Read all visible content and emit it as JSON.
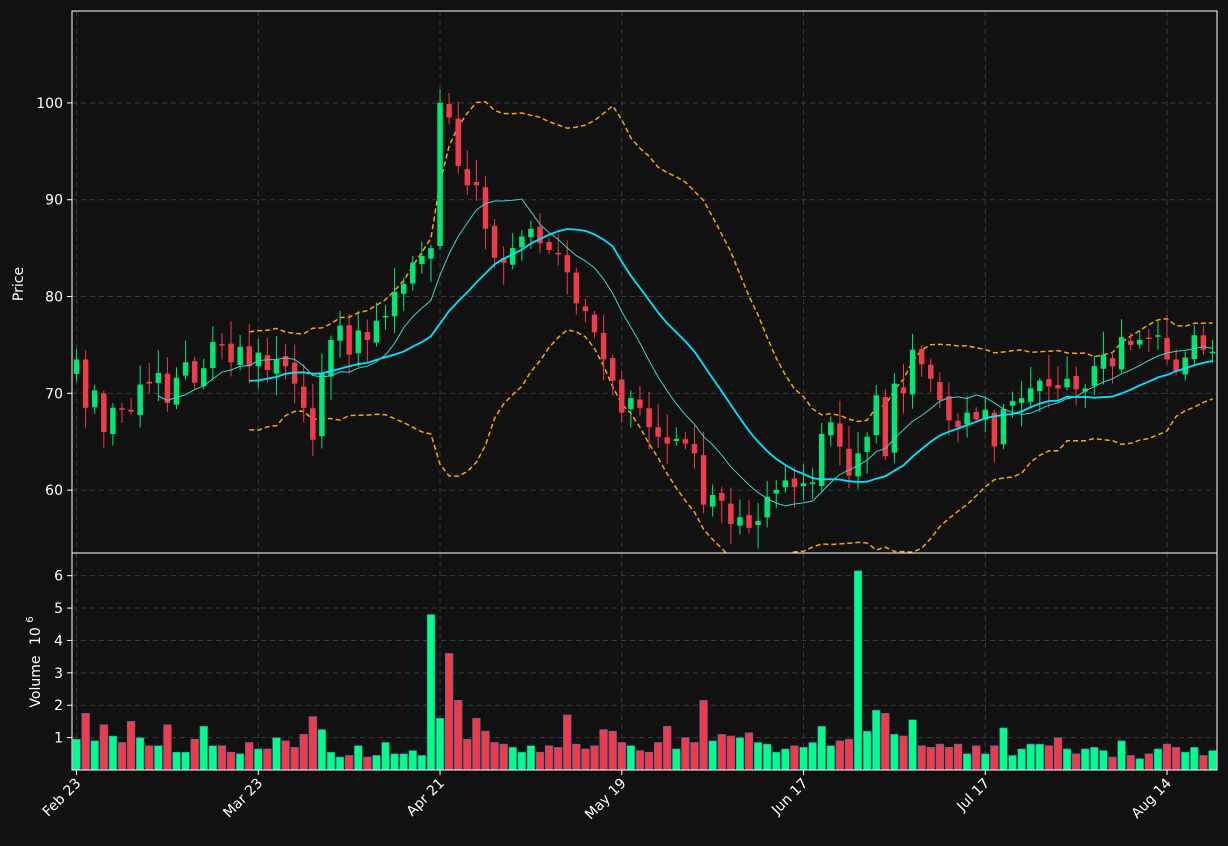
{
  "chart_data": {
    "type": "candlestick",
    "price_axis": {
      "ylabel": "Price",
      "ylim": [
        53.5,
        109.5
      ],
      "ticks": [
        60,
        70,
        80,
        90,
        100
      ]
    },
    "volume_axis": {
      "ylabel": "Volume",
      "exponent_label": "10",
      "exponent_power": "6",
      "ylim": [
        0,
        6.7
      ],
      "ticks": [
        1,
        2,
        3,
        4,
        5,
        6
      ]
    },
    "x_axis": {
      "range": [
        -0.5,
        125.5
      ],
      "tick_labels": [
        {
          "index": 0,
          "label": "Feb 23"
        },
        {
          "index": 20,
          "label": "Mar 23"
        },
        {
          "index": 40,
          "label": "Apr 21"
        },
        {
          "index": 60,
          "label": "May 19"
        },
        {
          "index": 80,
          "label": "Jun 17"
        },
        {
          "index": 100,
          "label": "Jul 17"
        },
        {
          "index": 120,
          "label": "Aug 14"
        }
      ]
    },
    "grid": true,
    "colors": {
      "background": "#111111",
      "up": "#00e676",
      "down": "#ef3b4a",
      "volume_up": "#00ff88",
      "volume_down": "#ef3b4a",
      "ma_short": "#39d5d0",
      "ma_long": "#00e5ff",
      "bands": "#ffa500",
      "grid": "#3a3a3a",
      "frame": "#ffffff"
    },
    "closes": [
      73.5,
      68.5,
      70.3,
      66.0,
      68.5,
      68.3,
      68.1,
      70.9,
      71.0,
      72.1,
      69.0,
      71.6,
      73.2,
      71.1,
      72.6,
      75.3,
      75.0,
      73.2,
      74.8,
      72.8,
      74.2,
      72.4,
      73.5,
      72.8,
      71.0,
      68.5,
      65.2,
      72.0,
      75.5,
      77.0,
      74.0,
      76.5,
      75.5,
      77.5,
      78.0,
      80.5,
      81.3,
      83.5,
      84.2,
      85.0,
      100.0,
      98.5,
      93.5,
      91.5,
      91.5,
      87.0,
      84.0,
      83.5,
      85.0,
      86.2,
      87.0,
      85.5,
      84.8,
      84.5,
      82.5,
      79.3,
      78.5,
      76.3,
      73.5,
      71.3,
      68.0,
      69.5,
      68.5,
      66.5,
      65.5,
      64.8,
      65.3,
      64.8,
      63.8,
      58.5,
      59.5,
      58.9,
      56.5,
      57.2,
      56.1,
      56.8,
      59.3,
      60.0,
      61.0,
      60.3,
      60.7,
      60.8,
      65.8,
      67.0,
      64.5,
      61.5,
      63.8,
      65.5,
      69.8,
      63.5,
      71.0,
      70.0,
      74.5,
      73.0,
      71.5,
      69.3,
      67.2,
      66.5,
      68.0,
      67.3,
      68.3,
      64.5,
      68.4,
      69.2,
      69.5,
      70.5,
      71.3,
      70.7,
      70.5,
      71.5,
      70.4,
      70.5,
      72.8,
      74.0,
      72.8,
      75.8,
      75.0,
      75.5,
      75.7,
      76.0,
      73.5,
      72.3,
      73.7,
      76.0,
      74.5,
      74.3
    ],
    "volumes": [
      0.95,
      1.75,
      0.9,
      1.4,
      1.05,
      0.85,
      1.5,
      1.0,
      0.75,
      0.75,
      1.4,
      0.55,
      0.55,
      0.95,
      1.35,
      0.75,
      0.75,
      0.55,
      0.5,
      0.85,
      0.65,
      0.65,
      1.0,
      0.9,
      0.7,
      1.1,
      1.65,
      1.25,
      0.55,
      0.4,
      0.45,
      0.75,
      0.4,
      0.45,
      0.85,
      0.5,
      0.5,
      0.6,
      0.45,
      4.8,
      1.6,
      3.6,
      2.15,
      0.95,
      1.6,
      1.2,
      0.85,
      0.8,
      0.7,
      0.55,
      0.75,
      0.55,
      0.75,
      0.7,
      1.7,
      0.8,
      0.65,
      0.75,
      1.25,
      1.2,
      0.85,
      0.75,
      0.6,
      0.55,
      0.85,
      1.35,
      0.65,
      1.0,
      0.85,
      2.15,
      0.9,
      1.1,
      1.05,
      1.0,
      1.15,
      0.85,
      0.8,
      0.55,
      0.65,
      0.75,
      0.7,
      0.85,
      1.35,
      0.75,
      0.9,
      0.95,
      6.15,
      1.2,
      1.85,
      1.75,
      1.1,
      1.05,
      1.55,
      0.75,
      0.7,
      0.8,
      0.7,
      0.8,
      0.5,
      0.75,
      0.5,
      0.75,
      1.3,
      0.45,
      0.65,
      0.8,
      0.8,
      0.75,
      1.0,
      0.65,
      0.5,
      0.65,
      0.7,
      0.6,
      0.4,
      0.9,
      0.45,
      0.35,
      0.5,
      0.65,
      0.8,
      0.7,
      0.55,
      0.7,
      0.45,
      0.6
    ],
    "overlays": [
      {
        "kind": "moving_average",
        "period": 10
      },
      {
        "kind": "moving_average",
        "period": 20
      },
      {
        "kind": "bollinger_bands",
        "period": 20,
        "std": 2
      }
    ]
  }
}
